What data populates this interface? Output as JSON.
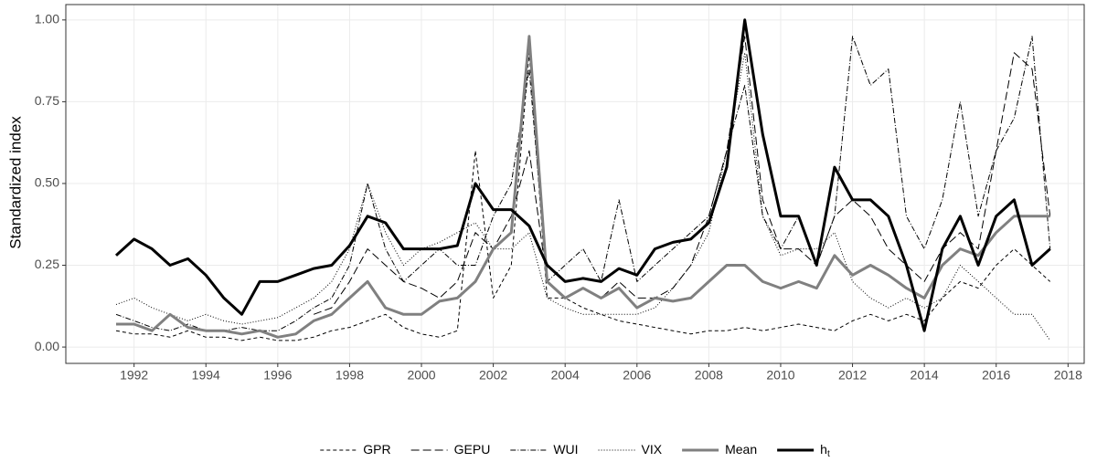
{
  "chart_data": {
    "type": "line",
    "y_label": "Standardized index",
    "x": [
      1991.5,
      1992,
      1992.5,
      1993,
      1993.5,
      1994,
      1994.5,
      1995,
      1995.5,
      1996,
      1996.5,
      1997,
      1997.5,
      1998,
      1998.5,
      1999,
      1999.5,
      2000,
      2000.5,
      2001,
      2001.5,
      2002,
      2002.5,
      2003,
      2003.5,
      2004,
      2004.5,
      2005,
      2005.5,
      2006,
      2006.5,
      2007,
      2007.5,
      2008,
      2008.5,
      2009,
      2009.5,
      2010,
      2010.5,
      2011,
      2011.5,
      2012,
      2012.5,
      2013,
      2013.5,
      2014,
      2014.5,
      2015,
      2015.5,
      2016,
      2016.5,
      2017,
      2017.5
    ],
    "series": [
      {
        "name": "GPR",
        "color": "#000000",
        "dash": "4,3",
        "width": 1,
        "values": [
          0.05,
          0.04,
          0.04,
          0.03,
          0.05,
          0.03,
          0.03,
          0.02,
          0.03,
          0.02,
          0.02,
          0.03,
          0.05,
          0.06,
          0.08,
          0.1,
          0.06,
          0.04,
          0.03,
          0.05,
          0.6,
          0.15,
          0.25,
          0.9,
          0.15,
          0.15,
          0.12,
          0.1,
          0.08,
          0.07,
          0.06,
          0.05,
          0.04,
          0.05,
          0.05,
          0.06,
          0.05,
          0.06,
          0.07,
          0.06,
          0.05,
          0.08,
          0.1,
          0.08,
          0.1,
          0.08,
          0.15,
          0.2,
          0.18,
          0.25,
          0.3,
          0.25,
          0.2
        ]
      },
      {
        "name": "GEPU",
        "color": "#000000",
        "dash": "9,4",
        "width": 1,
        "values": [
          null,
          null,
          null,
          null,
          null,
          null,
          null,
          null,
          null,
          null,
          null,
          0.1,
          0.12,
          0.2,
          0.3,
          0.25,
          0.2,
          0.18,
          0.15,
          0.2,
          0.35,
          0.3,
          0.4,
          0.6,
          0.2,
          0.15,
          0.18,
          0.15,
          0.2,
          0.15,
          0.15,
          0.18,
          0.25,
          0.4,
          0.6,
          0.95,
          0.45,
          0.3,
          0.3,
          0.25,
          0.4,
          0.45,
          0.4,
          0.3,
          0.25,
          0.2,
          0.3,
          0.35,
          0.3,
          0.6,
          0.9,
          0.85,
          0.4
        ]
      },
      {
        "name": "WUI",
        "color": "#000000",
        "dash": "6,2,1,2",
        "width": 1,
        "values": [
          0.1,
          0.08,
          0.06,
          0.05,
          0.07,
          0.05,
          0.05,
          0.06,
          0.05,
          0.05,
          0.08,
          0.12,
          0.15,
          0.25,
          0.5,
          0.3,
          0.2,
          0.25,
          0.3,
          0.25,
          0.25,
          0.4,
          0.5,
          0.85,
          0.2,
          0.25,
          0.3,
          0.2,
          0.45,
          0.2,
          0.25,
          0.3,
          0.35,
          0.4,
          0.6,
          0.8,
          0.4,
          0.3,
          0.4,
          0.25,
          0.4,
          0.95,
          0.8,
          0.85,
          0.4,
          0.3,
          0.45,
          0.75,
          0.4,
          0.6,
          0.7,
          0.95,
          0.3
        ]
      },
      {
        "name": "VIX",
        "color": "#000000",
        "dash": "1,2",
        "width": 1,
        "values": [
          0.13,
          0.15,
          0.12,
          0.1,
          0.08,
          0.1,
          0.08,
          0.07,
          0.08,
          0.09,
          0.12,
          0.15,
          0.2,
          0.3,
          0.5,
          0.35,
          0.25,
          0.3,
          0.32,
          0.35,
          0.38,
          0.3,
          0.3,
          0.35,
          0.15,
          0.12,
          0.1,
          0.1,
          0.1,
          0.1,
          0.12,
          0.18,
          0.25,
          0.35,
          0.6,
          0.9,
          0.4,
          0.28,
          0.3,
          0.3,
          0.35,
          0.2,
          0.15,
          0.12,
          0.15,
          0.12,
          0.15,
          0.25,
          0.2,
          0.15,
          0.1,
          0.1,
          0.02
        ]
      },
      {
        "name": "Mean",
        "color": "#808080",
        "dash": "none",
        "width": 3,
        "values": [
          0.07,
          0.07,
          0.05,
          0.1,
          0.06,
          0.05,
          0.05,
          0.04,
          0.05,
          0.03,
          0.04,
          0.08,
          0.1,
          0.15,
          0.2,
          0.12,
          0.1,
          0.1,
          0.14,
          0.15,
          0.2,
          0.3,
          0.35,
          0.95,
          0.2,
          0.15,
          0.18,
          0.15,
          0.18,
          0.12,
          0.15,
          0.14,
          0.15,
          0.2,
          0.25,
          0.25,
          0.2,
          0.18,
          0.2,
          0.18,
          0.28,
          0.22,
          0.25,
          0.22,
          0.18,
          0.15,
          0.25,
          0.3,
          0.28,
          0.35,
          0.4,
          0.4,
          0.4
        ]
      },
      {
        "name": "h",
        "subscript": "t",
        "color": "#000000",
        "dash": "none",
        "width": 3,
        "values": [
          0.28,
          0.33,
          0.3,
          0.25,
          0.27,
          0.22,
          0.15,
          0.1,
          0.2,
          0.2,
          0.22,
          0.24,
          0.25,
          0.31,
          0.4,
          0.38,
          0.3,
          0.3,
          0.3,
          0.31,
          0.5,
          0.42,
          0.42,
          0.37,
          0.25,
          0.2,
          0.21,
          0.2,
          0.24,
          0.22,
          0.3,
          0.32,
          0.33,
          0.38,
          0.55,
          1.0,
          0.65,
          0.4,
          0.4,
          0.25,
          0.55,
          0.45,
          0.45,
          0.4,
          0.25,
          0.05,
          0.3,
          0.4,
          0.25,
          0.4,
          0.45,
          0.25,
          0.3
        ]
      }
    ],
    "xlim": [
      1990.1,
      2018.45
    ],
    "xticks": [
      1992,
      1994,
      1996,
      1998,
      2000,
      2002,
      2004,
      2006,
      2008,
      2010,
      2012,
      2014,
      2016,
      2018
    ],
    "ylim": [
      -0.05,
      1.047
    ],
    "yticks": [
      {
        "value": 0,
        "label": "0.00"
      },
      {
        "value": 0.25,
        "label": "0.25"
      },
      {
        "value": 0.5,
        "label": "0.50"
      },
      {
        "value": 0.75,
        "label": "0.75"
      },
      {
        "value": 1,
        "label": "1.00"
      }
    ],
    "grid": true,
    "legend": "bottom"
  }
}
